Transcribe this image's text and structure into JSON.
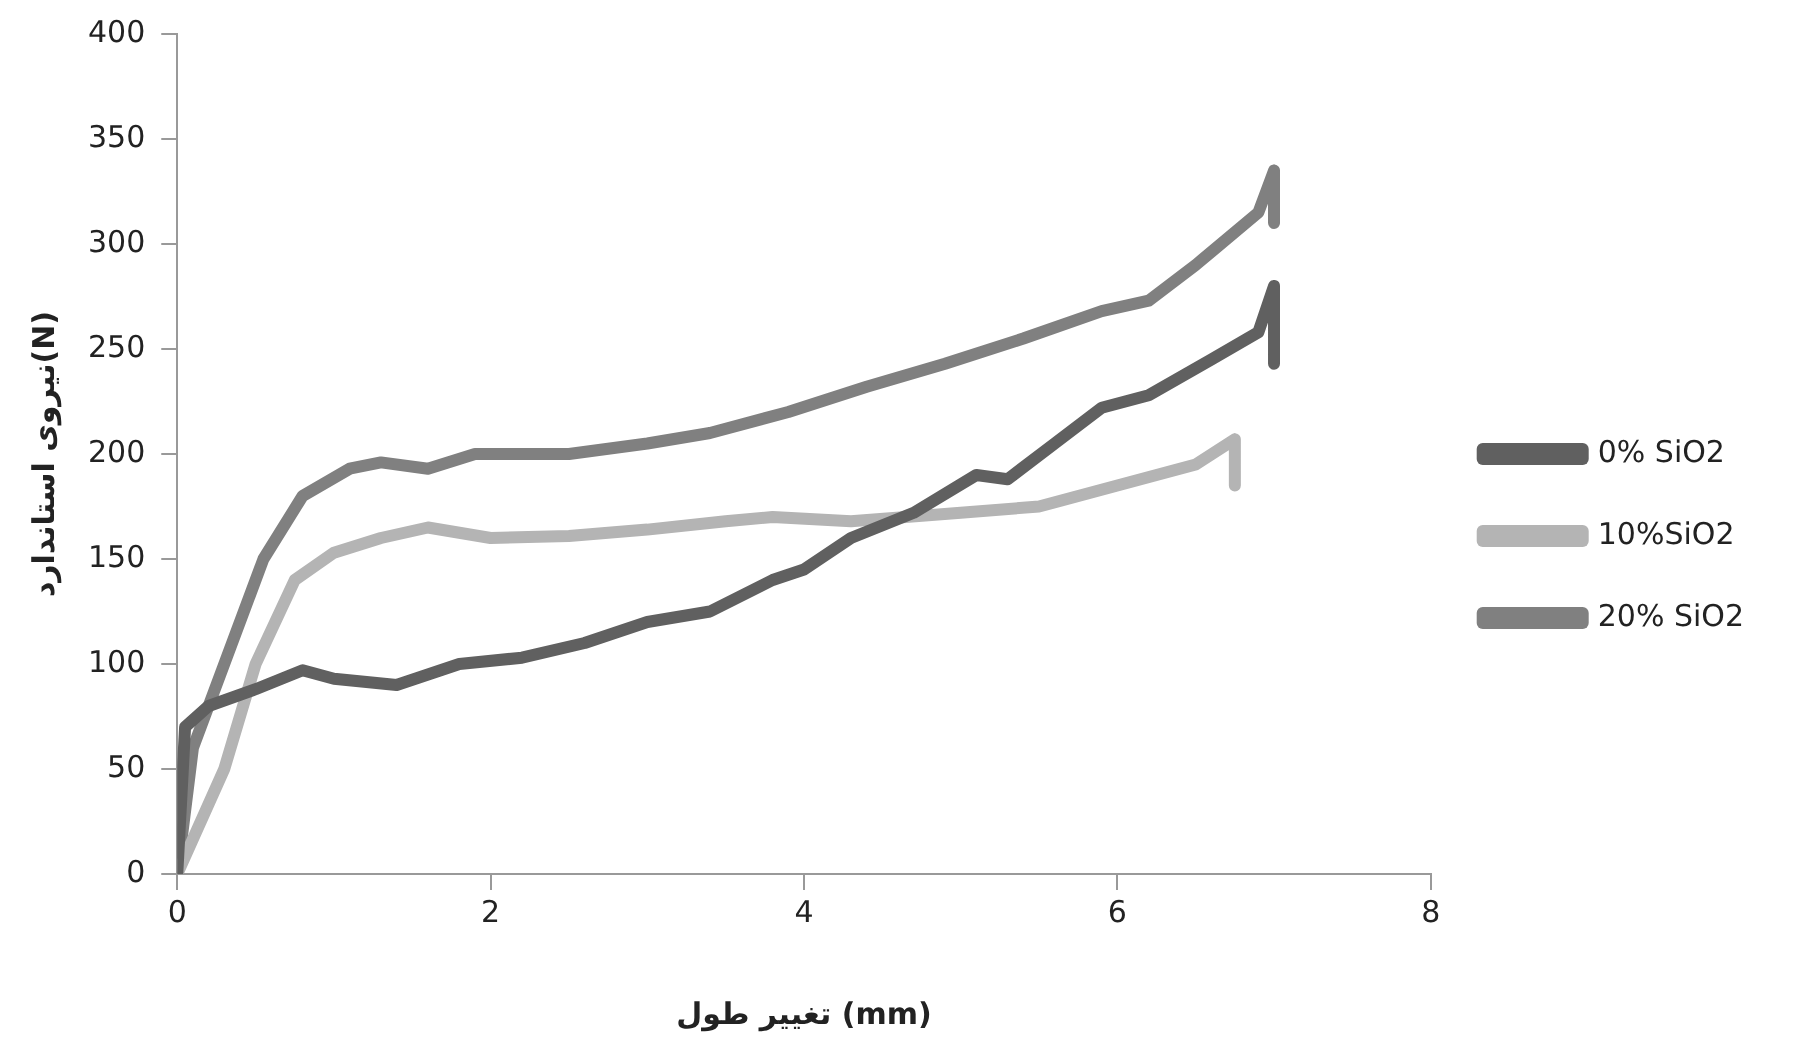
{
  "chart_data": {
    "type": "line",
    "xlabel": "تغییر طول (mm)",
    "ylabel": "نیروی استاندارد(N)",
    "xlim": [
      0,
      8
    ],
    "xticks": [
      0,
      2,
      4,
      6,
      8
    ],
    "ylim": [
      0,
      400
    ],
    "yticks": [
      0,
      50,
      100,
      150,
      200,
      250,
      300,
      350,
      400
    ],
    "grid": false,
    "legend": "right",
    "marker": "none",
    "line_style": "solid",
    "series": [
      {
        "name": "0% SiO2",
        "color": "#606060",
        "x": [
          0,
          0.05,
          0.2,
          0.5,
          0.8,
          1.0,
          1.4,
          1.8,
          2.2,
          2.6,
          3.0,
          3.4,
          3.8,
          4.0,
          4.3,
          4.7,
          5.1,
          5.3,
          5.6,
          5.9,
          6.2,
          6.6,
          6.9,
          7.0,
          7.0
        ],
        "values": [
          0,
          70,
          80,
          88,
          97,
          93,
          90,
          100,
          103,
          110,
          120,
          125,
          140,
          145,
          160,
          172,
          190,
          188,
          205,
          222,
          228,
          245,
          258,
          280,
          243
        ]
      },
      {
        "name": "10%SiO2",
        "color": "#b4b4b4",
        "x": [
          0,
          0.3,
          0.5,
          0.75,
          1.0,
          1.3,
          1.6,
          2.0,
          2.5,
          3.0,
          3.5,
          3.8,
          4.3,
          5.0,
          5.5,
          6.0,
          6.5,
          6.75,
          6.75
        ],
        "values": [
          0,
          50,
          100,
          140,
          153,
          160,
          165,
          160,
          161,
          164,
          168,
          170,
          168,
          172,
          175,
          185,
          195,
          207,
          185
        ]
      },
      {
        "name": "20% SiO2",
        "color": "#808080",
        "x": [
          0,
          0.1,
          0.3,
          0.55,
          0.8,
          1.1,
          1.3,
          1.6,
          1.9,
          2.5,
          3.0,
          3.4,
          3.9,
          4.4,
          4.9,
          5.4,
          5.9,
          6.2,
          6.5,
          6.9,
          7.0,
          7.0
        ],
        "values": [
          0,
          60,
          100,
          150,
          180,
          193,
          196,
          193,
          200,
          200,
          205,
          210,
          220,
          232,
          243,
          255,
          268,
          273,
          290,
          315,
          335,
          310
        ]
      }
    ]
  }
}
